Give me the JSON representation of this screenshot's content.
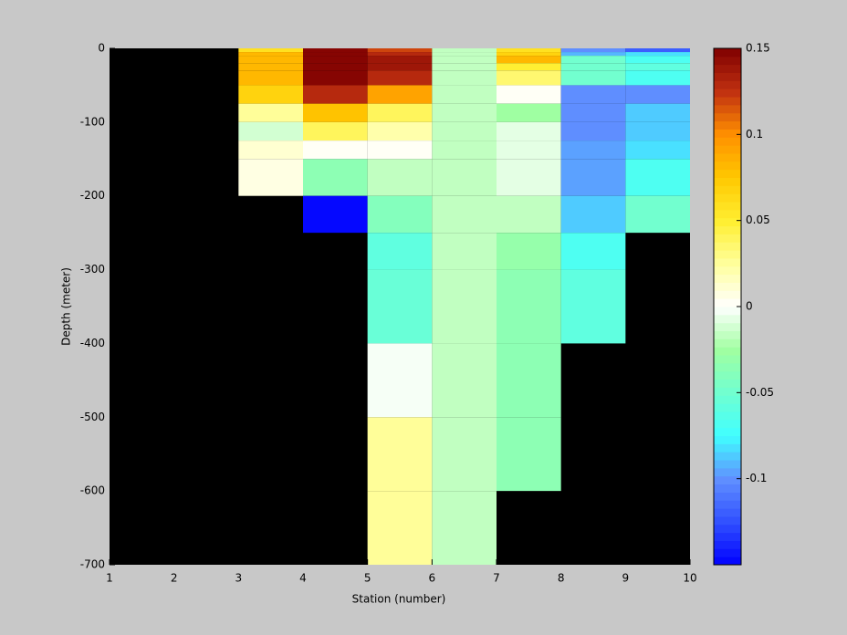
{
  "chart_data": {
    "type": "heatmap",
    "xlabel": "Station (number)",
    "ylabel": "Depth (meter)",
    "x": [
      1,
      2,
      3,
      4,
      5,
      6,
      7,
      8,
      9,
      10
    ],
    "y": [
      0,
      -5,
      -10,
      -20,
      -30,
      -50,
      -75,
      -100,
      -125,
      -150,
      -200,
      -250,
      -300,
      -400,
      -500,
      -600,
      -700
    ],
    "values": [
      [
        null,
        null,
        0.06,
        0.15,
        0.12,
        -0.015,
        0.06,
        -0.1,
        -0.12
      ],
      [
        null,
        null,
        0.08,
        0.15,
        0.13,
        -0.015,
        0.07,
        -0.09,
        -0.08
      ],
      [
        null,
        null,
        0.08,
        0.15,
        0.14,
        -0.015,
        0.08,
        -0.05,
        -0.07
      ],
      [
        null,
        null,
        0.08,
        0.15,
        0.14,
        -0.015,
        0.05,
        -0.05,
        -0.06
      ],
      [
        null,
        null,
        0.08,
        0.15,
        0.13,
        -0.015,
        0.035,
        -0.05,
        -0.07
      ],
      [
        null,
        null,
        0.07,
        0.13,
        0.09,
        -0.015,
        0.0,
        -0.1,
        -0.1
      ],
      [
        null,
        null,
        0.025,
        0.075,
        0.04,
        -0.015,
        -0.025,
        -0.1,
        -0.085
      ],
      [
        null,
        null,
        -0.01,
        0.04,
        0.02,
        -0.015,
        -0.008,
        -0.1,
        -0.085
      ],
      [
        null,
        null,
        0.01,
        0.0,
        0.0,
        -0.015,
        -0.005,
        -0.095,
        -0.08
      ],
      [
        null,
        null,
        0.005,
        -0.035,
        -0.015,
        -0.015,
        -0.005,
        -0.095,
        -0.07
      ],
      [
        null,
        null,
        null,
        -0.15,
        -0.04,
        -0.015,
        -0.015,
        -0.085,
        -0.05
      ],
      [
        null,
        null,
        null,
        null,
        -0.06,
        -0.015,
        -0.03,
        -0.07,
        null
      ],
      [
        null,
        null,
        null,
        null,
        -0.055,
        -0.015,
        -0.035,
        -0.06,
        null
      ],
      [
        null,
        null,
        null,
        null,
        -0.003,
        -0.015,
        -0.035,
        null,
        null
      ],
      [
        null,
        null,
        null,
        null,
        0.025,
        -0.015,
        -0.035,
        null,
        null
      ],
      [
        null,
        null,
        null,
        null,
        0.025,
        -0.015,
        null,
        null,
        null
      ]
    ],
    "xlim": [
      1,
      10
    ],
    "xticks": [
      1,
      2,
      3,
      4,
      5,
      6,
      7,
      8,
      9,
      10
    ],
    "ylim": [
      -700,
      0
    ],
    "yticks": [
      0,
      -100,
      -200,
      -300,
      -400,
      -500,
      -600,
      -700
    ],
    "clim": [
      -0.15,
      0.15
    ],
    "cticks": [
      0.15,
      0.1,
      0.05,
      0,
      -0.05,
      -0.1
    ],
    "colormap": [
      "#0000ff",
      "#3050ff",
      "#6090ff",
      "#40ffff",
      "#70ffd0",
      "#a0ffa0",
      "#ffffff",
      "#ffff9c",
      "#ffee30",
      "#ffc800",
      "#ff9000",
      "#c03010",
      "#800000"
    ],
    "background": "#000000"
  }
}
